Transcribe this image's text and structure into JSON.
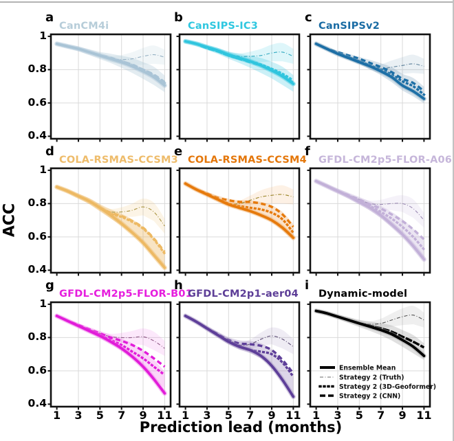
{
  "figure": {
    "ylabel": "ACC",
    "xlabel": "Prediction lead (months)",
    "y_ticks": [
      "1",
      "0.8",
      "0.6",
      "0.4"
    ],
    "y_tick_values": [
      1,
      0.8,
      0.6,
      0.4
    ],
    "x_ticks": [
      "1",
      "3",
      "5",
      "7",
      "9",
      "11"
    ],
    "x_tick_values": [
      1,
      3,
      5,
      7,
      9,
      11
    ],
    "grid_x": [
      3,
      5,
      7,
      9,
      11
    ],
    "grid_y": [
      0.8,
      0.6
    ],
    "legend": [
      {
        "label": "Ensemble Mean",
        "style": "solid"
      },
      {
        "label": "Strategy 2 (Truth)",
        "style": "dashdot"
      },
      {
        "label": "Strategy 2 (3D-Geoformer)",
        "style": "dotted"
      },
      {
        "label": "Strategy 2 (CNN)",
        "style": "dashed"
      }
    ],
    "border_color": "#b3b3b3"
  },
  "chart_data": {
    "type": "line",
    "x": [
      1,
      2,
      3,
      4,
      5,
      6,
      7,
      8,
      9,
      10,
      11
    ],
    "xlabel": "Prediction lead (months)",
    "ylabel": "ACC",
    "x_range": [
      1,
      11
    ],
    "y_range": [
      0.4,
      1.0
    ],
    "grid": true,
    "legend_position": "lower-left of panel i",
    "truth_band_halfwidth": [
      0.004,
      0.005,
      0.006,
      0.008,
      0.012,
      0.018,
      0.028,
      0.04,
      0.05,
      0.055,
      0.045
    ],
    "ensemble_band_halfwidth": [
      0.01,
      0.012,
      0.014,
      0.018,
      0.022,
      0.028,
      0.036,
      0.045,
      0.05,
      0.055,
      0.05
    ],
    "panels": [
      {
        "letter": "a",
        "title": "CanCM4i",
        "color": "#a9c4d6",
        "title_color": "#b7cdd9",
        "truth_color": "#93afc2",
        "band_color": "#a9c4d6",
        "band_opacity": 0.33,
        "legend": false,
        "series": {
          "ensemble_mean": [
            0.955,
            0.94,
            0.925,
            0.905,
            0.885,
            0.865,
            0.845,
            0.82,
            0.79,
            0.755,
            0.705
          ],
          "strategy2_truth": [
            0.955,
            0.94,
            0.925,
            0.905,
            0.885,
            0.865,
            0.86,
            0.865,
            0.88,
            0.89,
            0.875
          ],
          "strategy2_geoformer": [
            0.955,
            0.94,
            0.925,
            0.905,
            0.885,
            0.865,
            0.85,
            0.825,
            0.8,
            0.765,
            0.72
          ],
          "strategy2_cnn": [
            0.955,
            0.94,
            0.925,
            0.905,
            0.885,
            0.87,
            0.85,
            0.83,
            0.8,
            0.77,
            0.725
          ]
        }
      },
      {
        "letter": "b",
        "title": "CanSIPS-IC3",
        "color": "#30c5de",
        "title_color": "#2fc7e0",
        "truth_color": "#2fa8bf",
        "band_color": "#30c5de",
        "band_opacity": 0.25,
        "legend": false,
        "series": {
          "ensemble_mean": [
            0.97,
            0.955,
            0.935,
            0.915,
            0.89,
            0.87,
            0.85,
            0.825,
            0.795,
            0.76,
            0.715
          ],
          "strategy2_truth": [
            0.97,
            0.955,
            0.935,
            0.915,
            0.895,
            0.88,
            0.88,
            0.885,
            0.9,
            0.905,
            0.88
          ],
          "strategy2_geoformer": [
            0.97,
            0.955,
            0.93,
            0.91,
            0.885,
            0.865,
            0.85,
            0.83,
            0.805,
            0.775,
            0.735
          ],
          "strategy2_cnn": [
            0.97,
            0.955,
            0.93,
            0.91,
            0.885,
            0.865,
            0.845,
            0.825,
            0.8,
            0.765,
            0.72
          ]
        }
      },
      {
        "letter": "c",
        "title": "CanSIPSv2",
        "color": "#1d6fa6",
        "title_color": "#1a6ca4",
        "truth_color": "#5b7f99",
        "band_color": "#7fa3bd",
        "band_opacity": 0.3,
        "legend": false,
        "series": {
          "ensemble_mean": [
            0.955,
            0.925,
            0.895,
            0.87,
            0.845,
            0.82,
            0.79,
            0.755,
            0.705,
            0.67,
            0.625
          ],
          "strategy2_truth": [
            0.955,
            0.925,
            0.9,
            0.875,
            0.855,
            0.815,
            0.805,
            0.815,
            0.825,
            0.835,
            0.82
          ],
          "strategy2_geoformer": [
            0.955,
            0.925,
            0.9,
            0.875,
            0.85,
            0.825,
            0.8,
            0.77,
            0.73,
            0.7,
            0.65
          ],
          "strategy2_cnn": [
            0.955,
            0.925,
            0.905,
            0.885,
            0.865,
            0.84,
            0.815,
            0.785,
            0.745,
            0.72,
            0.67
          ]
        }
      },
      {
        "letter": "d",
        "title": "COLA-RSMAS-CCSM3",
        "color": "#edb963",
        "title_color": "#eebc6b",
        "truth_color": "#a8923d",
        "band_color": "#edb963",
        "band_opacity": 0.38,
        "legend": false,
        "series": {
          "ensemble_mean": [
            0.9,
            0.875,
            0.845,
            0.815,
            0.775,
            0.73,
            0.68,
            0.625,
            0.565,
            0.49,
            0.415
          ],
          "strategy2_truth": [
            0.9,
            0.875,
            0.845,
            0.815,
            0.775,
            0.75,
            0.75,
            0.76,
            0.78,
            0.75,
            0.665
          ],
          "strategy2_geoformer": [
            0.9,
            0.875,
            0.845,
            0.815,
            0.775,
            0.74,
            0.72,
            0.69,
            0.65,
            0.585,
            0.5
          ],
          "strategy2_cnn": [
            0.9,
            0.875,
            0.845,
            0.815,
            0.775,
            0.745,
            0.725,
            0.695,
            0.655,
            0.59,
            0.51
          ]
        }
      },
      {
        "letter": "e",
        "title": "COLA-RSMAS-CCSM4",
        "color": "#e67a0c",
        "title_color": "#e4770b",
        "truth_color": "#97801f",
        "band_color": "#f0a860",
        "band_opacity": 0.32,
        "legend": false,
        "series": {
          "ensemble_mean": [
            0.92,
            0.885,
            0.855,
            0.825,
            0.795,
            0.775,
            0.755,
            0.73,
            0.7,
            0.655,
            0.595
          ],
          "strategy2_truth": [
            0.92,
            0.885,
            0.855,
            0.825,
            0.8,
            0.8,
            0.82,
            0.84,
            0.85,
            0.855,
            0.84
          ],
          "strategy2_geoformer": [
            0.92,
            0.885,
            0.855,
            0.825,
            0.8,
            0.785,
            0.775,
            0.765,
            0.745,
            0.705,
            0.625
          ],
          "strategy2_cnn": [
            0.92,
            0.885,
            0.86,
            0.835,
            0.82,
            0.81,
            0.81,
            0.8,
            0.78,
            0.735,
            0.66
          ]
        }
      },
      {
        "letter": "f",
        "title": "GFDL-CM2p5-FLOR-A06",
        "color": "#c2b0d8",
        "title_color": "#c6b6da",
        "truth_color": "#9d8cb5",
        "band_color": "#c2b0d8",
        "band_opacity": 0.33,
        "legend": false,
        "series": {
          "ensemble_mean": [
            0.935,
            0.905,
            0.875,
            0.845,
            0.81,
            0.775,
            0.73,
            0.675,
            0.615,
            0.545,
            0.465
          ],
          "strategy2_truth": [
            0.935,
            0.905,
            0.875,
            0.85,
            0.825,
            0.8,
            0.795,
            0.8,
            0.8,
            0.77,
            0.7
          ],
          "strategy2_geoformer": [
            0.935,
            0.905,
            0.875,
            0.845,
            0.815,
            0.785,
            0.75,
            0.71,
            0.66,
            0.6,
            0.525
          ],
          "strategy2_cnn": [
            0.935,
            0.905,
            0.875,
            0.85,
            0.825,
            0.795,
            0.77,
            0.735,
            0.695,
            0.645,
            0.585
          ]
        }
      },
      {
        "letter": "g",
        "title": "GFDL-CM2p5-FLOR-B01",
        "color": "#e11cd9",
        "title_color": "#e61ede",
        "truth_color": "#8f5a86",
        "band_color": "#ef6fe8",
        "band_opacity": 0.3,
        "legend": false,
        "series": {
          "ensemble_mean": [
            0.93,
            0.9,
            0.87,
            0.84,
            0.81,
            0.775,
            0.735,
            0.685,
            0.625,
            0.55,
            0.465
          ],
          "strategy2_truth": [
            0.93,
            0.9,
            0.875,
            0.85,
            0.825,
            0.805,
            0.8,
            0.8,
            0.805,
            0.78,
            0.735
          ],
          "strategy2_geoformer": [
            0.93,
            0.9,
            0.87,
            0.845,
            0.815,
            0.785,
            0.755,
            0.715,
            0.675,
            0.625,
            0.575
          ],
          "strategy2_cnn": [
            0.93,
            0.9,
            0.875,
            0.85,
            0.825,
            0.8,
            0.78,
            0.755,
            0.72,
            0.675,
            0.625
          ]
        }
      },
      {
        "letter": "h",
        "title": "GFDL-CM2p1-aer04",
        "color": "#5e3f99",
        "title_color": "#5d3e97",
        "truth_color": "#5a4a72",
        "band_color": "#9d8abd",
        "band_opacity": 0.35,
        "legend": false,
        "series": {
          "ensemble_mean": [
            0.93,
            0.895,
            0.855,
            0.815,
            0.775,
            0.745,
            0.725,
            0.69,
            0.63,
            0.545,
            0.445
          ],
          "strategy2_truth": [
            0.93,
            0.895,
            0.855,
            0.82,
            0.785,
            0.755,
            0.76,
            0.79,
            0.81,
            0.79,
            0.745
          ],
          "strategy2_geoformer": [
            0.93,
            0.895,
            0.855,
            0.815,
            0.775,
            0.745,
            0.725,
            0.715,
            0.7,
            0.65,
            0.565
          ],
          "strategy2_cnn": [
            0.93,
            0.895,
            0.855,
            0.82,
            0.785,
            0.765,
            0.76,
            0.75,
            0.725,
            0.665,
            0.585
          ]
        }
      },
      {
        "letter": "i",
        "title": "Dynamic-model",
        "color": "#000000",
        "title_color": "#000000",
        "truth_color": "#555555",
        "band_color": "#999999",
        "band_opacity": 0.3,
        "legend": true,
        "series": {
          "ensemble_mean": [
            0.96,
            0.945,
            0.925,
            0.905,
            0.885,
            0.865,
            0.845,
            0.82,
            0.785,
            0.745,
            0.69
          ],
          "strategy2_truth": [
            0.96,
            0.945,
            0.925,
            0.905,
            0.89,
            0.88,
            0.885,
            0.905,
            0.925,
            0.935,
            0.905
          ],
          "strategy2_geoformer": [
            0.96,
            0.945,
            0.925,
            0.905,
            0.885,
            0.87,
            0.855,
            0.835,
            0.805,
            0.775,
            0.74
          ],
          "strategy2_cnn": [
            0.96,
            0.945,
            0.925,
            0.905,
            0.885,
            0.87,
            0.855,
            0.835,
            0.805,
            0.775,
            0.74
          ]
        }
      }
    ]
  }
}
